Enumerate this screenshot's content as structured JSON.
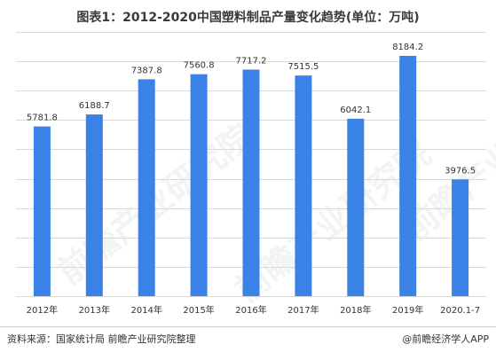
{
  "chart_data": {
    "type": "bar",
    "title": "图表1：2012-2020中国塑料制品产量变化趋势(单位：万吨)",
    "categories": [
      "2012年",
      "2013年",
      "2014年",
      "2015年",
      "2016年",
      "2017年",
      "2018年",
      "2019年",
      "2020.1-7"
    ],
    "series": [
      {
        "values": [
          5781.8,
          6188.7,
          7387.8,
          7560.8,
          7717.2,
          7515.5,
          6042.1,
          8184.2,
          3976.5
        ]
      }
    ],
    "data_labels": [
      "5781.8",
      "6188.7",
      "7387.8",
      "7560.8",
      "7717.2",
      "7515.5",
      "6042.1",
      "8184.2",
      "3976.5"
    ],
    "ylim": [
      0,
      9000
    ],
    "grid": true,
    "bar_color": "#3b82e6",
    "grid_color": "#d9d9d9"
  },
  "watermark": "前瞻产业研究院",
  "footer": {
    "source": "资料来源：国家统计局 前瞻产业研究院整理",
    "brand": "@前瞻经济学人APP"
  }
}
